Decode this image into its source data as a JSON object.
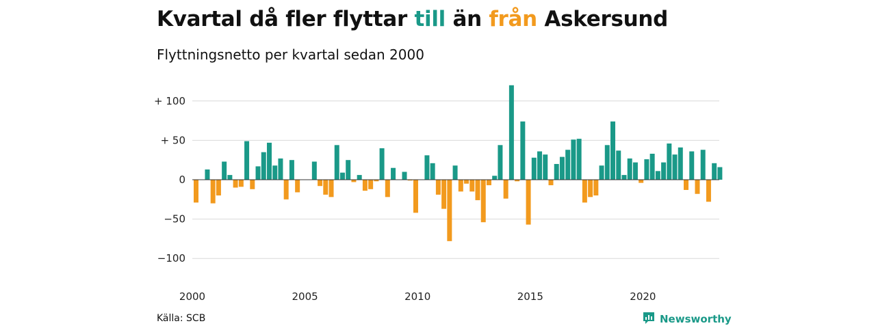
{
  "title": {
    "part1": "Kvartal då fler flyttar ",
    "word_in": "till",
    "part2": " än ",
    "word_out": "från",
    "part3": " Askersund"
  },
  "subtitle": "Flyttningsnetto per kvartal sedan 2000",
  "source": "Källa: SCB",
  "brand": "Newsworthy",
  "colors": {
    "positive": "#1a9988",
    "negative": "#f29a1e",
    "grid": "#d9d9d9",
    "zero": "#333333"
  },
  "chart_data": {
    "type": "bar",
    "xlabel": "",
    "ylabel": "",
    "ylim": [
      -100,
      120
    ],
    "yticks": [
      {
        "value": 100,
        "label": "+ 100"
      },
      {
        "value": 50,
        "label": "+  50"
      },
      {
        "value": 0,
        "label": "0"
      },
      {
        "value": -50,
        "label": "−50"
      },
      {
        "value": -100,
        "label": "−100"
      }
    ],
    "xticks": [
      "2000",
      "2005",
      "2010",
      "2015",
      "2020"
    ],
    "start_year": 2000,
    "grid": true,
    "values": [
      -29,
      0,
      13,
      -30,
      -20,
      23,
      6,
      -10,
      -9,
      49,
      -12,
      17,
      35,
      47,
      18,
      27,
      -25,
      25,
      -16,
      0,
      0,
      23,
      -8,
      -19,
      -22,
      44,
      9,
      25,
      -3,
      6,
      -14,
      -12,
      -2,
      40,
      -22,
      15,
      0,
      10,
      -1,
      -42,
      0,
      31,
      21,
      -19,
      -37,
      -78,
      18,
      -15,
      -5,
      -15,
      -26,
      -54,
      -7,
      5,
      44,
      -24,
      120,
      -2,
      74,
      -57,
      28,
      36,
      32,
      -7,
      20,
      29,
      38,
      51,
      52,
      -29,
      -22,
      -20,
      18,
      44,
      74,
      37,
      6,
      27,
      22,
      -4,
      26,
      33,
      11,
      22,
      46,
      32,
      41,
      -13,
      36,
      -18,
      38,
      -28,
      21,
      16
    ]
  }
}
